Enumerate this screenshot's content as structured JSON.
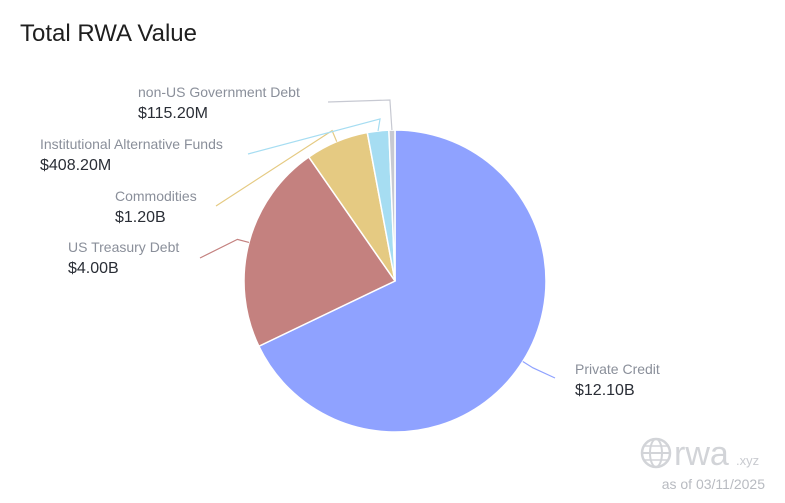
{
  "title": "Total RWA Value",
  "watermark": {
    "brand": "rwa",
    "domain": ".xyz",
    "as_of": "as of 03/11/2025"
  },
  "chart_data": {
    "type": "pie",
    "title": "Total RWA Value",
    "slices": [
      {
        "name": "Private Credit",
        "value": 12.1,
        "label": "$12.10B",
        "color": "#8fa2ff"
      },
      {
        "name": "US Treasury Debt",
        "value": 4.0,
        "label": "$4.00B",
        "color": "#c4817f"
      },
      {
        "name": "Commodities",
        "value": 1.2,
        "label": "$1.20B",
        "color": "#e5ca82"
      },
      {
        "name": "Institutional Alternative Funds",
        "value": 0.4082,
        "label": "$408.20M",
        "color": "#a6ddf2"
      },
      {
        "name": "non-US Government Debt",
        "value": 0.1152,
        "label": "$115.20M",
        "color": "#c7c9d2"
      }
    ]
  }
}
